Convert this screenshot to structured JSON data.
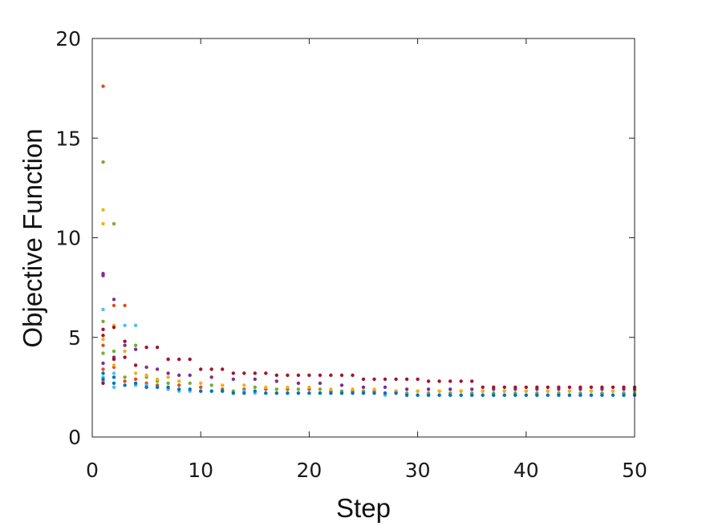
{
  "chart_data": {
    "type": "scatter",
    "title": "",
    "xlabel": "Step",
    "ylabel": "Objective Function",
    "xlim": [
      0,
      50
    ],
    "ylim": [
      0,
      20
    ],
    "x_ticks": [
      "0",
      "10",
      "20",
      "30",
      "40",
      "50"
    ],
    "y_ticks": [
      "0",
      "5",
      "10",
      "15",
      "20"
    ],
    "grid": false,
    "legend": "none",
    "colors": [
      "#d95319",
      "#77ac30",
      "#edb120",
      "#7e2f8e",
      "#4dbeee",
      "#a2142f",
      "#0072bd"
    ],
    "series": [
      {
        "color": "#d95319",
        "points": [
          [
            1,
            17.6
          ],
          [
            1,
            4.6
          ],
          [
            1,
            3.4
          ],
          [
            2,
            3.5
          ],
          [
            2,
            6.6
          ],
          [
            3,
            6.6
          ],
          [
            3,
            2.8
          ],
          [
            4,
            2.9
          ],
          [
            5,
            2.7
          ],
          [
            6,
            2.6
          ],
          [
            7,
            2.4
          ],
          [
            8,
            2.6
          ],
          [
            10,
            2.5
          ],
          [
            12,
            2.4
          ],
          [
            14,
            2.4
          ],
          [
            16,
            2.4
          ],
          [
            18,
            2.4
          ],
          [
            20,
            2.4
          ],
          [
            22,
            2.3
          ],
          [
            24,
            2.3
          ],
          [
            26,
            2.3
          ],
          [
            28,
            2.3
          ],
          [
            30,
            2.3
          ],
          [
            32,
            2.3
          ],
          [
            34,
            2.3
          ],
          [
            36,
            2.3
          ],
          [
            38,
            2.3
          ],
          [
            40,
            2.3
          ],
          [
            42,
            2.3
          ],
          [
            44,
            2.3
          ],
          [
            46,
            2.3
          ],
          [
            48,
            2.3
          ],
          [
            50,
            2.3
          ]
        ]
      },
      {
        "color": "#77ac30",
        "points": [
          [
            1,
            13.8
          ],
          [
            1,
            5.8
          ],
          [
            1,
            4.2
          ],
          [
            2,
            10.7
          ],
          [
            2,
            4.3
          ],
          [
            3,
            3.0
          ],
          [
            4,
            4.6
          ],
          [
            5,
            3.0
          ],
          [
            6,
            2.8
          ],
          [
            7,
            2.7
          ],
          [
            9,
            2.7
          ],
          [
            11,
            2.6
          ],
          [
            13,
            2.3
          ],
          [
            15,
            2.5
          ],
          [
            17,
            2.4
          ],
          [
            19,
            2.4
          ],
          [
            21,
            2.4
          ],
          [
            23,
            2.3
          ],
          [
            25,
            2.3
          ],
          [
            27,
            2.2
          ],
          [
            29,
            2.2
          ],
          [
            31,
            2.2
          ],
          [
            33,
            2.2
          ],
          [
            35,
            2.2
          ],
          [
            37,
            2.2
          ],
          [
            39,
            2.2
          ],
          [
            41,
            2.2
          ],
          [
            43,
            2.2
          ],
          [
            45,
            2.2
          ],
          [
            47,
            2.2
          ],
          [
            49,
            2.2
          ],
          [
            50,
            2.2
          ]
        ]
      },
      {
        "color": "#edb120",
        "points": [
          [
            1,
            11.4
          ],
          [
            1,
            10.7
          ],
          [
            1,
            4.9
          ],
          [
            2,
            3.6
          ],
          [
            2,
            5.6
          ],
          [
            3,
            4.3
          ],
          [
            4,
            3.2
          ],
          [
            5,
            3.1
          ],
          [
            6,
            2.9
          ],
          [
            7,
            3.0
          ],
          [
            8,
            2.8
          ],
          [
            10,
            2.7
          ],
          [
            12,
            2.6
          ],
          [
            14,
            2.6
          ],
          [
            16,
            2.5
          ],
          [
            18,
            2.5
          ],
          [
            20,
            2.5
          ],
          [
            22,
            2.4
          ],
          [
            24,
            2.4
          ],
          [
            26,
            2.4
          ],
          [
            28,
            2.3
          ],
          [
            30,
            2.3
          ],
          [
            32,
            2.3
          ],
          [
            34,
            2.3
          ],
          [
            36,
            2.3
          ],
          [
            38,
            2.3
          ],
          [
            40,
            2.3
          ],
          [
            42,
            2.3
          ],
          [
            44,
            2.3
          ],
          [
            46,
            2.3
          ],
          [
            48,
            2.3
          ],
          [
            50,
            2.3
          ]
        ]
      },
      {
        "color": "#7e2f8e",
        "points": [
          [
            1,
            8.2
          ],
          [
            1,
            8.1
          ],
          [
            1,
            3.7
          ],
          [
            2,
            6.9
          ],
          [
            2,
            4.0
          ],
          [
            3,
            4.6
          ],
          [
            4,
            4.4
          ],
          [
            5,
            3.5
          ],
          [
            6,
            3.4
          ],
          [
            7,
            3.2
          ],
          [
            8,
            3.1
          ],
          [
            9,
            3.1
          ],
          [
            11,
            3.0
          ],
          [
            13,
            2.9
          ],
          [
            15,
            2.9
          ],
          [
            17,
            2.8
          ],
          [
            19,
            2.7
          ],
          [
            21,
            2.7
          ],
          [
            23,
            2.6
          ],
          [
            25,
            2.5
          ],
          [
            27,
            2.5
          ],
          [
            29,
            2.4
          ],
          [
            31,
            2.4
          ],
          [
            33,
            2.4
          ],
          [
            35,
            2.4
          ],
          [
            37,
            2.4
          ],
          [
            39,
            2.4
          ],
          [
            41,
            2.4
          ],
          [
            43,
            2.4
          ],
          [
            45,
            2.4
          ],
          [
            47,
            2.4
          ],
          [
            49,
            2.4
          ],
          [
            50,
            2.4
          ]
        ]
      },
      {
        "color": "#4dbeee",
        "points": [
          [
            1,
            6.4
          ],
          [
            1,
            3.0
          ],
          [
            1,
            2.8
          ],
          [
            2,
            2.5
          ],
          [
            2,
            3.2
          ],
          [
            3,
            5.6
          ],
          [
            4,
            5.6
          ],
          [
            4,
            2.6
          ],
          [
            5,
            2.6
          ],
          [
            6,
            2.5
          ],
          [
            7,
            2.4
          ],
          [
            8,
            2.3
          ],
          [
            9,
            2.3
          ],
          [
            10,
            2.3
          ],
          [
            11,
            2.3
          ],
          [
            12,
            2.3
          ],
          [
            13,
            2.2
          ],
          [
            14,
            2.3
          ],
          [
            15,
            2.2
          ],
          [
            16,
            2.2
          ],
          [
            17,
            2.2
          ],
          [
            18,
            2.2
          ],
          [
            19,
            2.2
          ],
          [
            20,
            2.2
          ],
          [
            21,
            2.2
          ],
          [
            22,
            2.2
          ],
          [
            23,
            2.2
          ],
          [
            24,
            2.2
          ],
          [
            25,
            2.2
          ],
          [
            26,
            2.2
          ],
          [
            27,
            2.1
          ],
          [
            28,
            2.2
          ],
          [
            29,
            2.1
          ],
          [
            30,
            2.1
          ],
          [
            31,
            2.1
          ],
          [
            32,
            2.1
          ],
          [
            33,
            2.1
          ],
          [
            34,
            2.1
          ],
          [
            35,
            2.1
          ],
          [
            36,
            2.1
          ],
          [
            37,
            2.1
          ],
          [
            38,
            2.1
          ],
          [
            39,
            2.1
          ],
          [
            40,
            2.1
          ],
          [
            41,
            2.1
          ],
          [
            42,
            2.1
          ],
          [
            43,
            2.1
          ],
          [
            44,
            2.1
          ],
          [
            45,
            2.1
          ],
          [
            46,
            2.1
          ],
          [
            47,
            2.1
          ],
          [
            48,
            2.1
          ],
          [
            49,
            2.1
          ],
          [
            50,
            2.1
          ]
        ]
      },
      {
        "color": "#a2142f",
        "points": [
          [
            1,
            5.4
          ],
          [
            1,
            5.1
          ],
          [
            1,
            2.7
          ],
          [
            2,
            5.5
          ],
          [
            2,
            3.9
          ],
          [
            3,
            4.8
          ],
          [
            3,
            4.0
          ],
          [
            4,
            3.6
          ],
          [
            5,
            4.5
          ],
          [
            6,
            4.5
          ],
          [
            7,
            3.9
          ],
          [
            8,
            3.9
          ],
          [
            9,
            3.9
          ],
          [
            10,
            3.4
          ],
          [
            11,
            3.4
          ],
          [
            12,
            3.4
          ],
          [
            13,
            3.2
          ],
          [
            14,
            3.2
          ],
          [
            15,
            3.2
          ],
          [
            16,
            3.2
          ],
          [
            17,
            3.1
          ],
          [
            18,
            3.1
          ],
          [
            19,
            3.1
          ],
          [
            20,
            3.1
          ],
          [
            21,
            3.1
          ],
          [
            22,
            3.1
          ],
          [
            23,
            3.1
          ],
          [
            24,
            3.1
          ],
          [
            25,
            2.9
          ],
          [
            26,
            2.9
          ],
          [
            27,
            2.9
          ],
          [
            28,
            2.9
          ],
          [
            29,
            2.9
          ],
          [
            30,
            2.9
          ],
          [
            31,
            2.8
          ],
          [
            32,
            2.8
          ],
          [
            33,
            2.8
          ],
          [
            34,
            2.8
          ],
          [
            35,
            2.8
          ],
          [
            36,
            2.5
          ],
          [
            37,
            2.5
          ],
          [
            38,
            2.5
          ],
          [
            39,
            2.5
          ],
          [
            40,
            2.5
          ],
          [
            41,
            2.5
          ],
          [
            42,
            2.5
          ],
          [
            43,
            2.5
          ],
          [
            44,
            2.5
          ],
          [
            45,
            2.5
          ],
          [
            46,
            2.5
          ],
          [
            47,
            2.5
          ],
          [
            48,
            2.5
          ],
          [
            49,
            2.5
          ],
          [
            50,
            2.5
          ]
        ]
      },
      {
        "color": "#0072bd",
        "points": [
          [
            1,
            3.2
          ],
          [
            1,
            2.9
          ],
          [
            2,
            3.0
          ],
          [
            2,
            2.7
          ],
          [
            3,
            2.6
          ],
          [
            4,
            2.7
          ],
          [
            5,
            2.5
          ],
          [
            6,
            2.5
          ],
          [
            7,
            2.5
          ],
          [
            8,
            2.4
          ],
          [
            9,
            2.4
          ],
          [
            10,
            2.3
          ],
          [
            11,
            2.3
          ],
          [
            12,
            2.3
          ],
          [
            13,
            2.2
          ],
          [
            14,
            2.2
          ],
          [
            15,
            2.3
          ],
          [
            16,
            2.2
          ],
          [
            17,
            2.2
          ],
          [
            18,
            2.2
          ],
          [
            19,
            2.2
          ],
          [
            20,
            2.2
          ],
          [
            21,
            2.2
          ],
          [
            22,
            2.2
          ],
          [
            23,
            2.2
          ],
          [
            24,
            2.2
          ],
          [
            25,
            2.2
          ],
          [
            26,
            2.2
          ],
          [
            27,
            2.2
          ],
          [
            28,
            2.2
          ],
          [
            29,
            2.1
          ],
          [
            30,
            2.1
          ],
          [
            31,
            2.1
          ],
          [
            32,
            2.1
          ],
          [
            33,
            2.1
          ],
          [
            34,
            2.1
          ],
          [
            35,
            2.1
          ],
          [
            36,
            2.1
          ],
          [
            37,
            2.1
          ],
          [
            38,
            2.1
          ],
          [
            39,
            2.1
          ],
          [
            40,
            2.1
          ],
          [
            41,
            2.1
          ],
          [
            42,
            2.1
          ],
          [
            43,
            2.1
          ],
          [
            44,
            2.1
          ],
          [
            45,
            2.1
          ],
          [
            46,
            2.1
          ],
          [
            47,
            2.1
          ],
          [
            48,
            2.1
          ],
          [
            49,
            2.1
          ],
          [
            50,
            2.1
          ]
        ]
      }
    ]
  }
}
